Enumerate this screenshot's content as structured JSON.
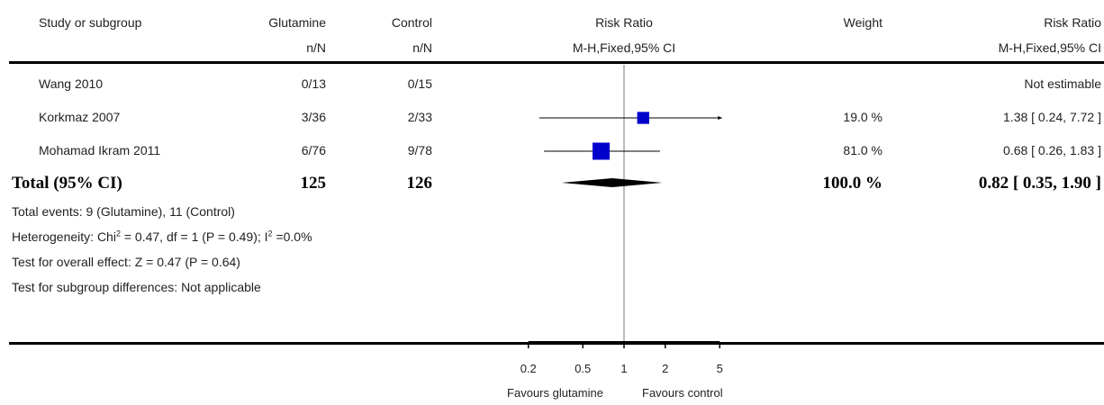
{
  "header": {
    "study": "Study or subgroup",
    "group1": "Glutamine",
    "group2": "Control",
    "n_over_N": "n/N",
    "effect": "Risk Ratio",
    "method": "M-H,Fixed,95% CI",
    "weight": "Weight"
  },
  "rows": [
    {
      "study": "Wang 2010",
      "g1": "0/13",
      "g2": "0/15",
      "weight": "",
      "ci_text": "Not estimable"
    },
    {
      "study": "Korkmaz 2007",
      "g1": "3/36",
      "g2": "2/33",
      "weight": "19.0 %",
      "ci_text": "1.38 [ 0.24, 7.72 ]"
    },
    {
      "study": "Mohamad Ikram 2011",
      "g1": "6/76",
      "g2": "9/78",
      "weight": "81.0 %",
      "ci_text": "0.68 [ 0.26, 1.83 ]"
    }
  ],
  "total": {
    "label": "Total (95% CI)",
    "g1": "125",
    "g2": "126",
    "weight": "100.0 %",
    "ci_text": "0.82 [ 0.35, 1.90 ]"
  },
  "notes": {
    "events": "Total events: 9 (Glutamine), 11 (Control)",
    "heterogeneity_pre": "Heterogeneity: Chi",
    "heterogeneity_mid": " = 0.47, df = 1 (P = 0.49); I",
    "heterogeneity_post": " =0.0%",
    "sup2": "2",
    "overall": "Test for overall effect: Z = 0.47 (P = 0.64)",
    "subgroup": "Test for subgroup differences: Not applicable"
  },
  "footer": {
    "favours_left": "Favours glutamine",
    "favours_right": "Favours control"
  },
  "colors": {
    "marker": "#0000cc",
    "line": "#000000"
  },
  "chart_data": {
    "type": "scatter",
    "scale": "log",
    "xlim": [
      0.2,
      5
    ],
    "ticks": [
      0.2,
      0.5,
      1,
      2,
      5
    ],
    "tick_labels": [
      "0.2",
      "0.5",
      "1",
      "2",
      "5"
    ],
    "null_value": 1,
    "studies": [
      {
        "name": "Wang 2010",
        "estimable": false
      },
      {
        "name": "Korkmaz 2007",
        "estimate": 1.38,
        "lower": 0.24,
        "upper": 7.72,
        "weight": 19.0
      },
      {
        "name": "Mohamad Ikram 2011",
        "estimate": 0.68,
        "lower": 0.26,
        "upper": 1.83,
        "weight": 81.0
      }
    ],
    "pooled": {
      "estimate": 0.82,
      "lower": 0.35,
      "upper": 1.9
    }
  }
}
